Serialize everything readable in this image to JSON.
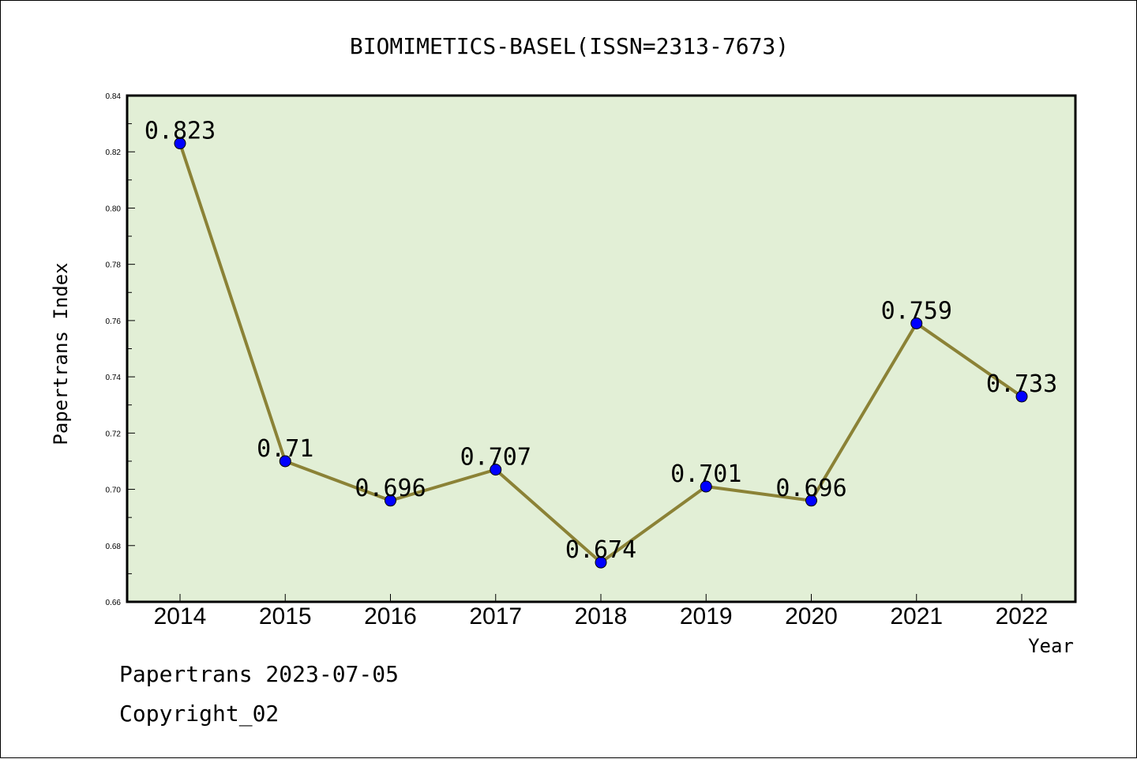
{
  "chart_data": {
    "type": "line",
    "title": "BIOMIMETICS-BASEL(ISSN=2313-7673)",
    "xlabel": "Year",
    "ylabel": "Papertrans Index",
    "categories": [
      "2014",
      "2015",
      "2016",
      "2017",
      "2018",
      "2019",
      "2020",
      "2021",
      "2022"
    ],
    "series": [
      {
        "values": [
          0.823,
          0.71,
          0.696,
          0.707,
          0.674,
          0.701,
          0.696,
          0.759,
          0.733
        ]
      }
    ],
    "data_labels": [
      "0.823",
      "0.71",
      "0.696",
      "0.707",
      "0.674",
      "0.701",
      "0.696",
      "0.759",
      "0.733"
    ],
    "ylim": [
      0.66,
      0.84
    ],
    "yticks": [
      "0.66",
      "0.68",
      "0.70",
      "0.72",
      "0.74",
      "0.76",
      "0.78",
      "0.80",
      "0.82",
      "0.84"
    ],
    "grid": false,
    "legend": "none",
    "colors": {
      "plot_background": "#e2efd6",
      "line": "#8b8236",
      "marker": "#0000ff"
    }
  },
  "footer": {
    "date_text": "Papertrans 2023-07-05",
    "copyright_text": "Copyright_02"
  }
}
